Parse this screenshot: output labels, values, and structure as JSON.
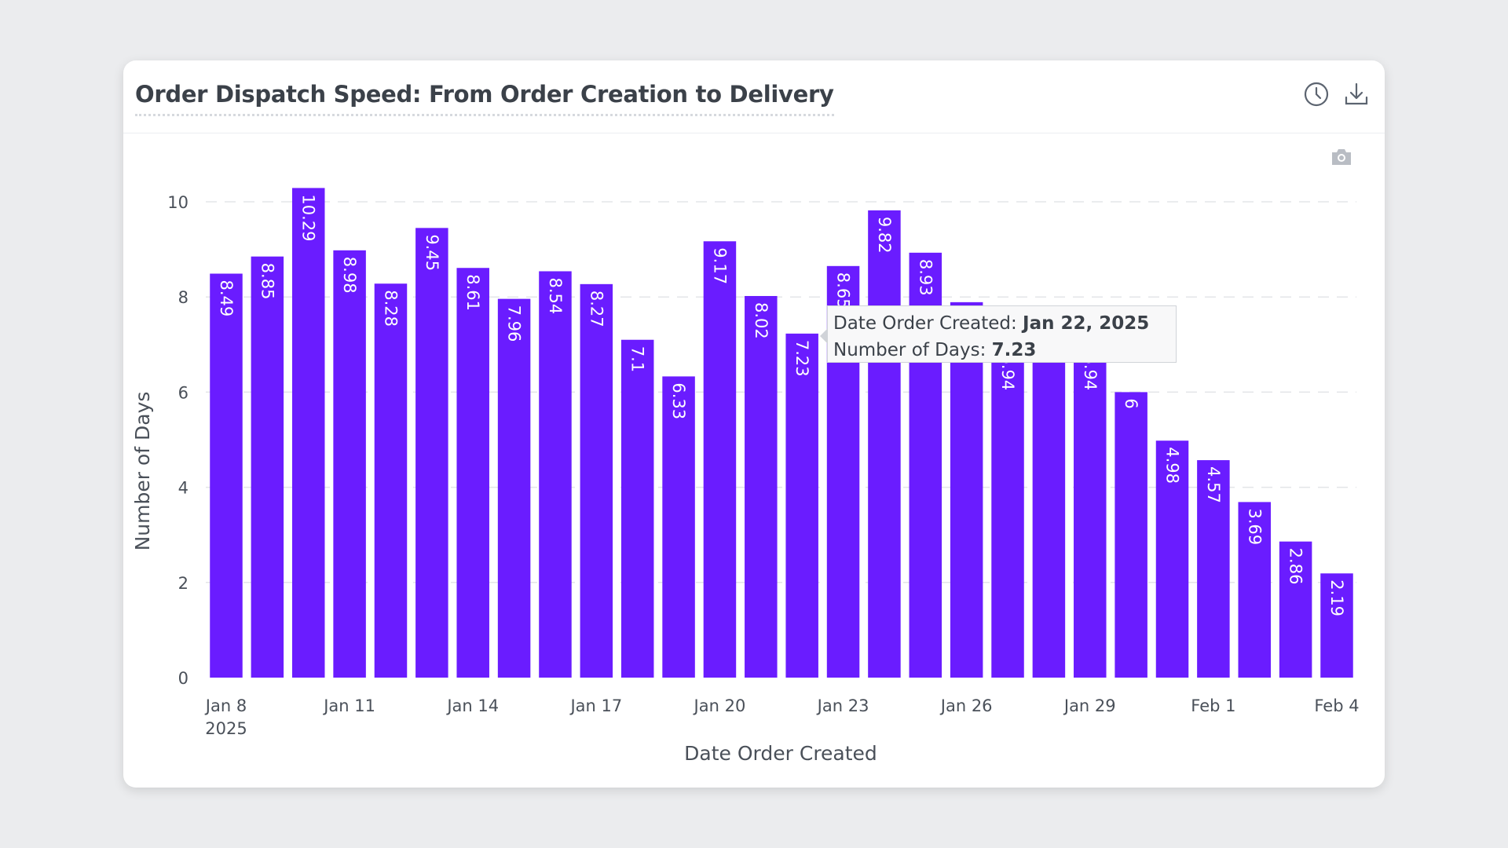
{
  "card": {
    "title": "Order Dispatch Speed: From Order Creation to Delivery",
    "icons": [
      "clock-icon",
      "download-icon",
      "camera-icon"
    ]
  },
  "tooltip": {
    "label_date": "Date Order Created: ",
    "value_date": "Jan 22, 2025",
    "label_value": "Number of Days: ",
    "value_value": "7.23"
  },
  "chart_data": {
    "type": "bar",
    "title": "Order Dispatch Speed: From Order Creation to Delivery",
    "xlabel": "Date Order Created",
    "ylabel": "Number of Days",
    "ylim": [
      0,
      10.5
    ],
    "yticks": [
      0,
      2,
      4,
      6,
      8,
      10
    ],
    "grid": true,
    "bar_color": "#6a1cff",
    "x_tick_labels": [
      "Jan 8\n2025",
      "Jan 11",
      "Jan 14",
      "Jan 17",
      "Jan 20",
      "Jan 23",
      "Jan 26",
      "Jan 29",
      "Feb 1",
      "Feb 4"
    ],
    "categories": [
      "Jan 8",
      "Jan 9",
      "Jan 10",
      "Jan 11",
      "Jan 12",
      "Jan 13",
      "Jan 14",
      "Jan 15",
      "Jan 16",
      "Jan 17",
      "Jan 18",
      "Jan 19",
      "Jan 20",
      "Jan 21",
      "Jan 22",
      "Jan 23",
      "Jan 24",
      "Jan 25",
      "Jan 26",
      "Jan 27",
      "Jan 28",
      "Jan 29",
      "Jan 30",
      "Jan 31",
      "Feb 1",
      "Feb 2",
      "Feb 3",
      "Feb 4"
    ],
    "values": [
      8.49,
      8.85,
      10.29,
      8.98,
      8.28,
      9.45,
      8.61,
      7.96,
      8.54,
      8.27,
      7.1,
      6.33,
      9.17,
      8.02,
      7.23,
      8.65,
      9.82,
      8.93,
      7.89,
      6.94,
      7.3,
      6.94,
      6,
      4.98,
      4.57,
      3.69,
      2.86,
      2.19
    ],
    "data_labels": [
      "8.49",
      "8.85",
      "10.29",
      "8.98",
      "8.28",
      "9.45",
      "8.61",
      "7.96",
      "8.54",
      "8.27",
      "7.1",
      "6.33",
      "9.17",
      "8.02",
      "7.23",
      "8.65",
      "9.82",
      "8.93",
      "",
      "6.94",
      "",
      "6.94",
      "6",
      "4.98",
      "4.57",
      "3.69",
      "2.86",
      "2.19"
    ]
  }
}
